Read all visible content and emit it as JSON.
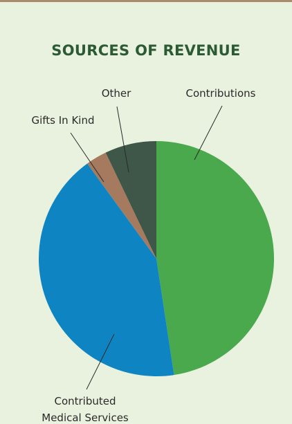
{
  "chart_data": {
    "type": "pie",
    "title": "SOURCES OF REVENUE",
    "slices": [
      {
        "label": "Contributions",
        "value": 47.6,
        "color": "#4aa84d"
      },
      {
        "label": "Contributed Medical Services",
        "value": 42.4,
        "color": "#0e85c2"
      },
      {
        "label": "Gifts In Kind",
        "value": 2.9,
        "color": "#a57a5e"
      },
      {
        "label": "Other",
        "value": 7.1,
        "color": "#3e5748"
      }
    ],
    "label_lines": {
      "Contributed Medical Services": [
        "Contributed",
        "Medical Services"
      ]
    },
    "legend": "none",
    "start_angle_deg": 0,
    "direction": "clockwise"
  },
  "colors": {
    "background": "#e9f2df",
    "top_rule": "#a98b6d",
    "title": "#2b5a35",
    "label_text": "#2a2a2a"
  }
}
